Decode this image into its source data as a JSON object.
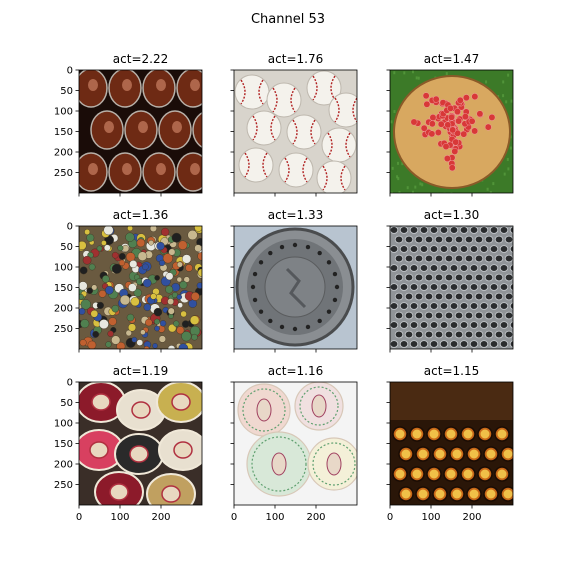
{
  "figure": {
    "title": "Channel 53"
  },
  "chart_data": {
    "type": "image-grid",
    "rows": 3,
    "cols": 3,
    "xlim": [
      0,
      300
    ],
    "ylim": [
      300,
      0
    ],
    "xticks": [
      0,
      100,
      200
    ],
    "yticks": [
      0,
      50,
      100,
      150,
      200,
      250
    ],
    "xticks_shown_on_row": 3,
    "yticks_shown_on_col": 1,
    "panels": [
      {
        "title": "act=2.22",
        "act": 2.22,
        "content": "wine-bottle-bottoms-icon",
        "colors": [
          "#1a0c08",
          "#6e2a14",
          "#b8b0a8"
        ]
      },
      {
        "title": "act=1.76",
        "act": 1.76,
        "content": "baseballs-icon",
        "colors": [
          "#d8d4cc",
          "#f4f2ec",
          "#b02020"
        ]
      },
      {
        "title": "act=1.47",
        "act": 1.47,
        "content": "bottlecap-heart-on-wood-icon",
        "colors": [
          "#3c7a28",
          "#d8a860",
          "#d83838"
        ]
      },
      {
        "title": "act=1.36",
        "act": 1.36,
        "content": "bottlecaps-wall-icon",
        "colors": [
          "#6a5a40",
          "#c8b890",
          "#a03030"
        ]
      },
      {
        "title": "act=1.33",
        "act": 1.33,
        "content": "manhole-cover-icon",
        "colors": [
          "#b8c4d0",
          "#707478",
          "#222222"
        ]
      },
      {
        "title": "act=1.30",
        "act": 1.3,
        "content": "metal-hexagon-mesh-icon",
        "colors": [
          "#909498",
          "#2a2c2e",
          "#c8ccd0"
        ]
      },
      {
        "title": "act=1.19",
        "act": 1.19,
        "content": "sombreros-icon",
        "colors": [
          "#3a2e28",
          "#8c1a2a",
          "#e8e0d0"
        ]
      },
      {
        "title": "act=1.16",
        "act": 1.16,
        "content": "embroidered-coasters-icon",
        "colors": [
          "#f4f4f4",
          "#d8c8b8",
          "#60a070"
        ]
      },
      {
        "title": "act=1.15",
        "act": 1.15,
        "content": "typewriter-keys-icon",
        "colors": [
          "#2a1608",
          "#c86818",
          "#f0c048"
        ]
      }
    ]
  }
}
